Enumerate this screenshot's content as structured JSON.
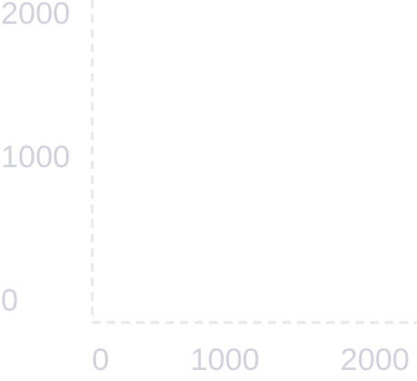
{
  "chart_data": {
    "type": "scatter",
    "title": "",
    "xlabel": "",
    "ylabel": "",
    "xlim": [
      0,
      2000
    ],
    "ylim": [
      0,
      2000
    ],
    "x_ticks": [
      "0",
      "1000",
      "2000"
    ],
    "y_ticks": [
      "0",
      "1000",
      "2000"
    ],
    "grid": false,
    "axis_style": "dashed",
    "series": [],
    "colors": {
      "axis": "#e7e7ec",
      "tick_label": "#d2d2dc"
    }
  }
}
